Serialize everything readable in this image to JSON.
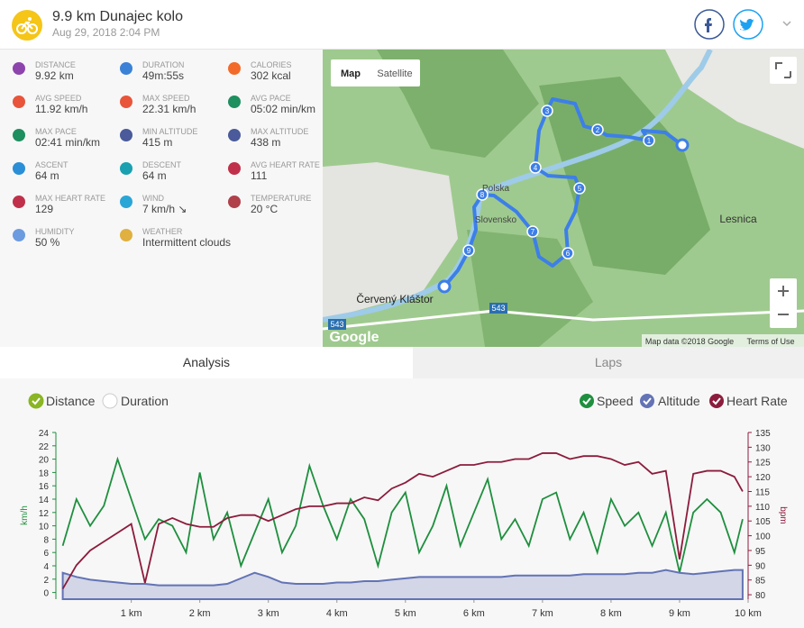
{
  "header": {
    "title": "9.9 km Dunajec kolo",
    "date": "Aug 29, 2018 2:04 PM"
  },
  "stats": [
    {
      "label": "DISTANCE",
      "value": "9.92 km",
      "color": "#8e44ad"
    },
    {
      "label": "DURATION",
      "value": "49m:55s",
      "color": "#3b82d6"
    },
    {
      "label": "CALORIES",
      "value": "302 kcal",
      "color": "#f26b2a"
    },
    {
      "label": "AVG SPEED",
      "value": "11.92 km/h",
      "color": "#e8553a"
    },
    {
      "label": "MAX SPEED",
      "value": "22.31 km/h",
      "color": "#e8553a"
    },
    {
      "label": "AVG PACE",
      "value": "05:02 min/km",
      "color": "#1e8f5e"
    },
    {
      "label": "MAX PACE",
      "value": "02:41 min/km",
      "color": "#1e8f5e"
    },
    {
      "label": "MIN ALTITUDE",
      "value": "415 m",
      "color": "#4a5a9a"
    },
    {
      "label": "MAX ALTITUDE",
      "value": "438 m",
      "color": "#4a5a9a"
    },
    {
      "label": "ASCENT",
      "value": "64 m",
      "color": "#2a8fd6"
    },
    {
      "label": "DESCENT",
      "value": "64 m",
      "color": "#1aa0b0"
    },
    {
      "label": "AVG HEART RATE",
      "value": "111",
      "color": "#c0304a"
    },
    {
      "label": "MAX HEART RATE",
      "value": "129",
      "color": "#c0304a"
    },
    {
      "label": "WIND",
      "value": "7 km/h ↘",
      "color": "#2aa6d6"
    },
    {
      "label": "TEMPERATURE",
      "value": "20 °C",
      "color": "#b0404a"
    },
    {
      "label": "HUMIDITY",
      "value": "50 %",
      "color": "#6d9be0"
    },
    {
      "label": "WEATHER",
      "value": "Intermittent clouds",
      "color": "#e0b040"
    }
  ],
  "map": {
    "buttons": [
      "Map",
      "Satellite"
    ],
    "markers": [
      "1",
      "2",
      "3",
      "4",
      "5",
      "6",
      "7",
      "8",
      "9"
    ],
    "labels": [
      "Červený Kláštor",
      "Lesnica",
      "Slovensko",
      "Polska",
      "543",
      "543",
      "Google",
      "Map data ©2018 Google",
      "Terms of Use"
    ]
  },
  "tabs": [
    "Analysis",
    "Laps"
  ],
  "axis_toggle": [
    "Distance",
    "Duration"
  ],
  "chart_data": {
    "type": "line",
    "x": [
      0,
      0.2,
      0.4,
      0.6,
      0.8,
      1.0,
      1.2,
      1.4,
      1.6,
      1.8,
      2.0,
      2.2,
      2.4,
      2.6,
      2.8,
      3.0,
      3.2,
      3.4,
      3.6,
      3.8,
      4.0,
      4.2,
      4.4,
      4.6,
      4.8,
      5.0,
      5.2,
      5.4,
      5.6,
      5.8,
      6.0,
      6.2,
      6.4,
      6.6,
      6.8,
      7.0,
      7.2,
      7.4,
      7.6,
      7.8,
      8.0,
      8.2,
      8.4,
      8.6,
      8.8,
      9.0,
      9.2,
      9.4,
      9.6,
      9.8,
      9.92
    ],
    "series": [
      {
        "name": "Speed",
        "color": "#1e8f3e",
        "axis": "y",
        "values": [
          7,
          14,
          10,
          13,
          20,
          14,
          8,
          11,
          10,
          6,
          18,
          8,
          12,
          4,
          9,
          14,
          6,
          10,
          19,
          13,
          8,
          14,
          11,
          4,
          12,
          15,
          6,
          10,
          16,
          7,
          12,
          17,
          8,
          11,
          7,
          14,
          15,
          8,
          12,
          6,
          14,
          10,
          12,
          7,
          12,
          3,
          12,
          14,
          12,
          6,
          11
        ]
      },
      {
        "name": "Altitude",
        "color": "#6373b5",
        "axis": "y3",
        "values": [
          424,
          421,
          419,
          418,
          417,
          416,
          416,
          415,
          415,
          415,
          415,
          415,
          416,
          420,
          424,
          421,
          417,
          416,
          416,
          416,
          417,
          417,
          418,
          418,
          419,
          420,
          421,
          421,
          421,
          421,
          421,
          421,
          421,
          422,
          422,
          422,
          422,
          422,
          423,
          423,
          423,
          423,
          424,
          424,
          426,
          424,
          423,
          424,
          425,
          426,
          426
        ]
      },
      {
        "name": "Heart Rate",
        "color": "#8c1c3c",
        "axis": "y2",
        "values": [
          82,
          90,
          95,
          98,
          101,
          104,
          84,
          104,
          106,
          104,
          103,
          103,
          106,
          107,
          107,
          105,
          107,
          109,
          110,
          110,
          111,
          111,
          113,
          112,
          116,
          118,
          121,
          120,
          122,
          124,
          124,
          125,
          125,
          126,
          126,
          128,
          128,
          126,
          127,
          127,
          126,
          124,
          125,
          121,
          122,
          92,
          121,
          122,
          122,
          120,
          115
        ]
      }
    ],
    "xlim": [
      -0.1,
      10.0
    ],
    "xticks": [
      {
        "value": 1,
        "label": "1 km"
      },
      {
        "value": 2,
        "label": "2 km"
      },
      {
        "value": 3,
        "label": "3 km"
      },
      {
        "value": 4,
        "label": "4 km"
      },
      {
        "value": 5,
        "label": "5 km"
      },
      {
        "value": 6,
        "label": "6 km"
      },
      {
        "value": 7,
        "label": "7 km"
      },
      {
        "value": 8,
        "label": "8 km"
      },
      {
        "value": 9,
        "label": "9 km"
      },
      {
        "value": 10,
        "label": "10 km"
      }
    ],
    "ylabel": "km/h",
    "ylim": [
      -1,
      24
    ],
    "yticks": [
      0,
      2,
      4,
      6,
      8,
      10,
      12,
      14,
      16,
      18,
      20,
      22,
      24
    ],
    "y2label": "bpm",
    "y2lim": [
      78.5,
      135
    ],
    "y2ticks": [
      80,
      85,
      90,
      95,
      100,
      105,
      110,
      115,
      120,
      125,
      130,
      135
    ],
    "y3lim": [
      405,
      525
    ]
  }
}
